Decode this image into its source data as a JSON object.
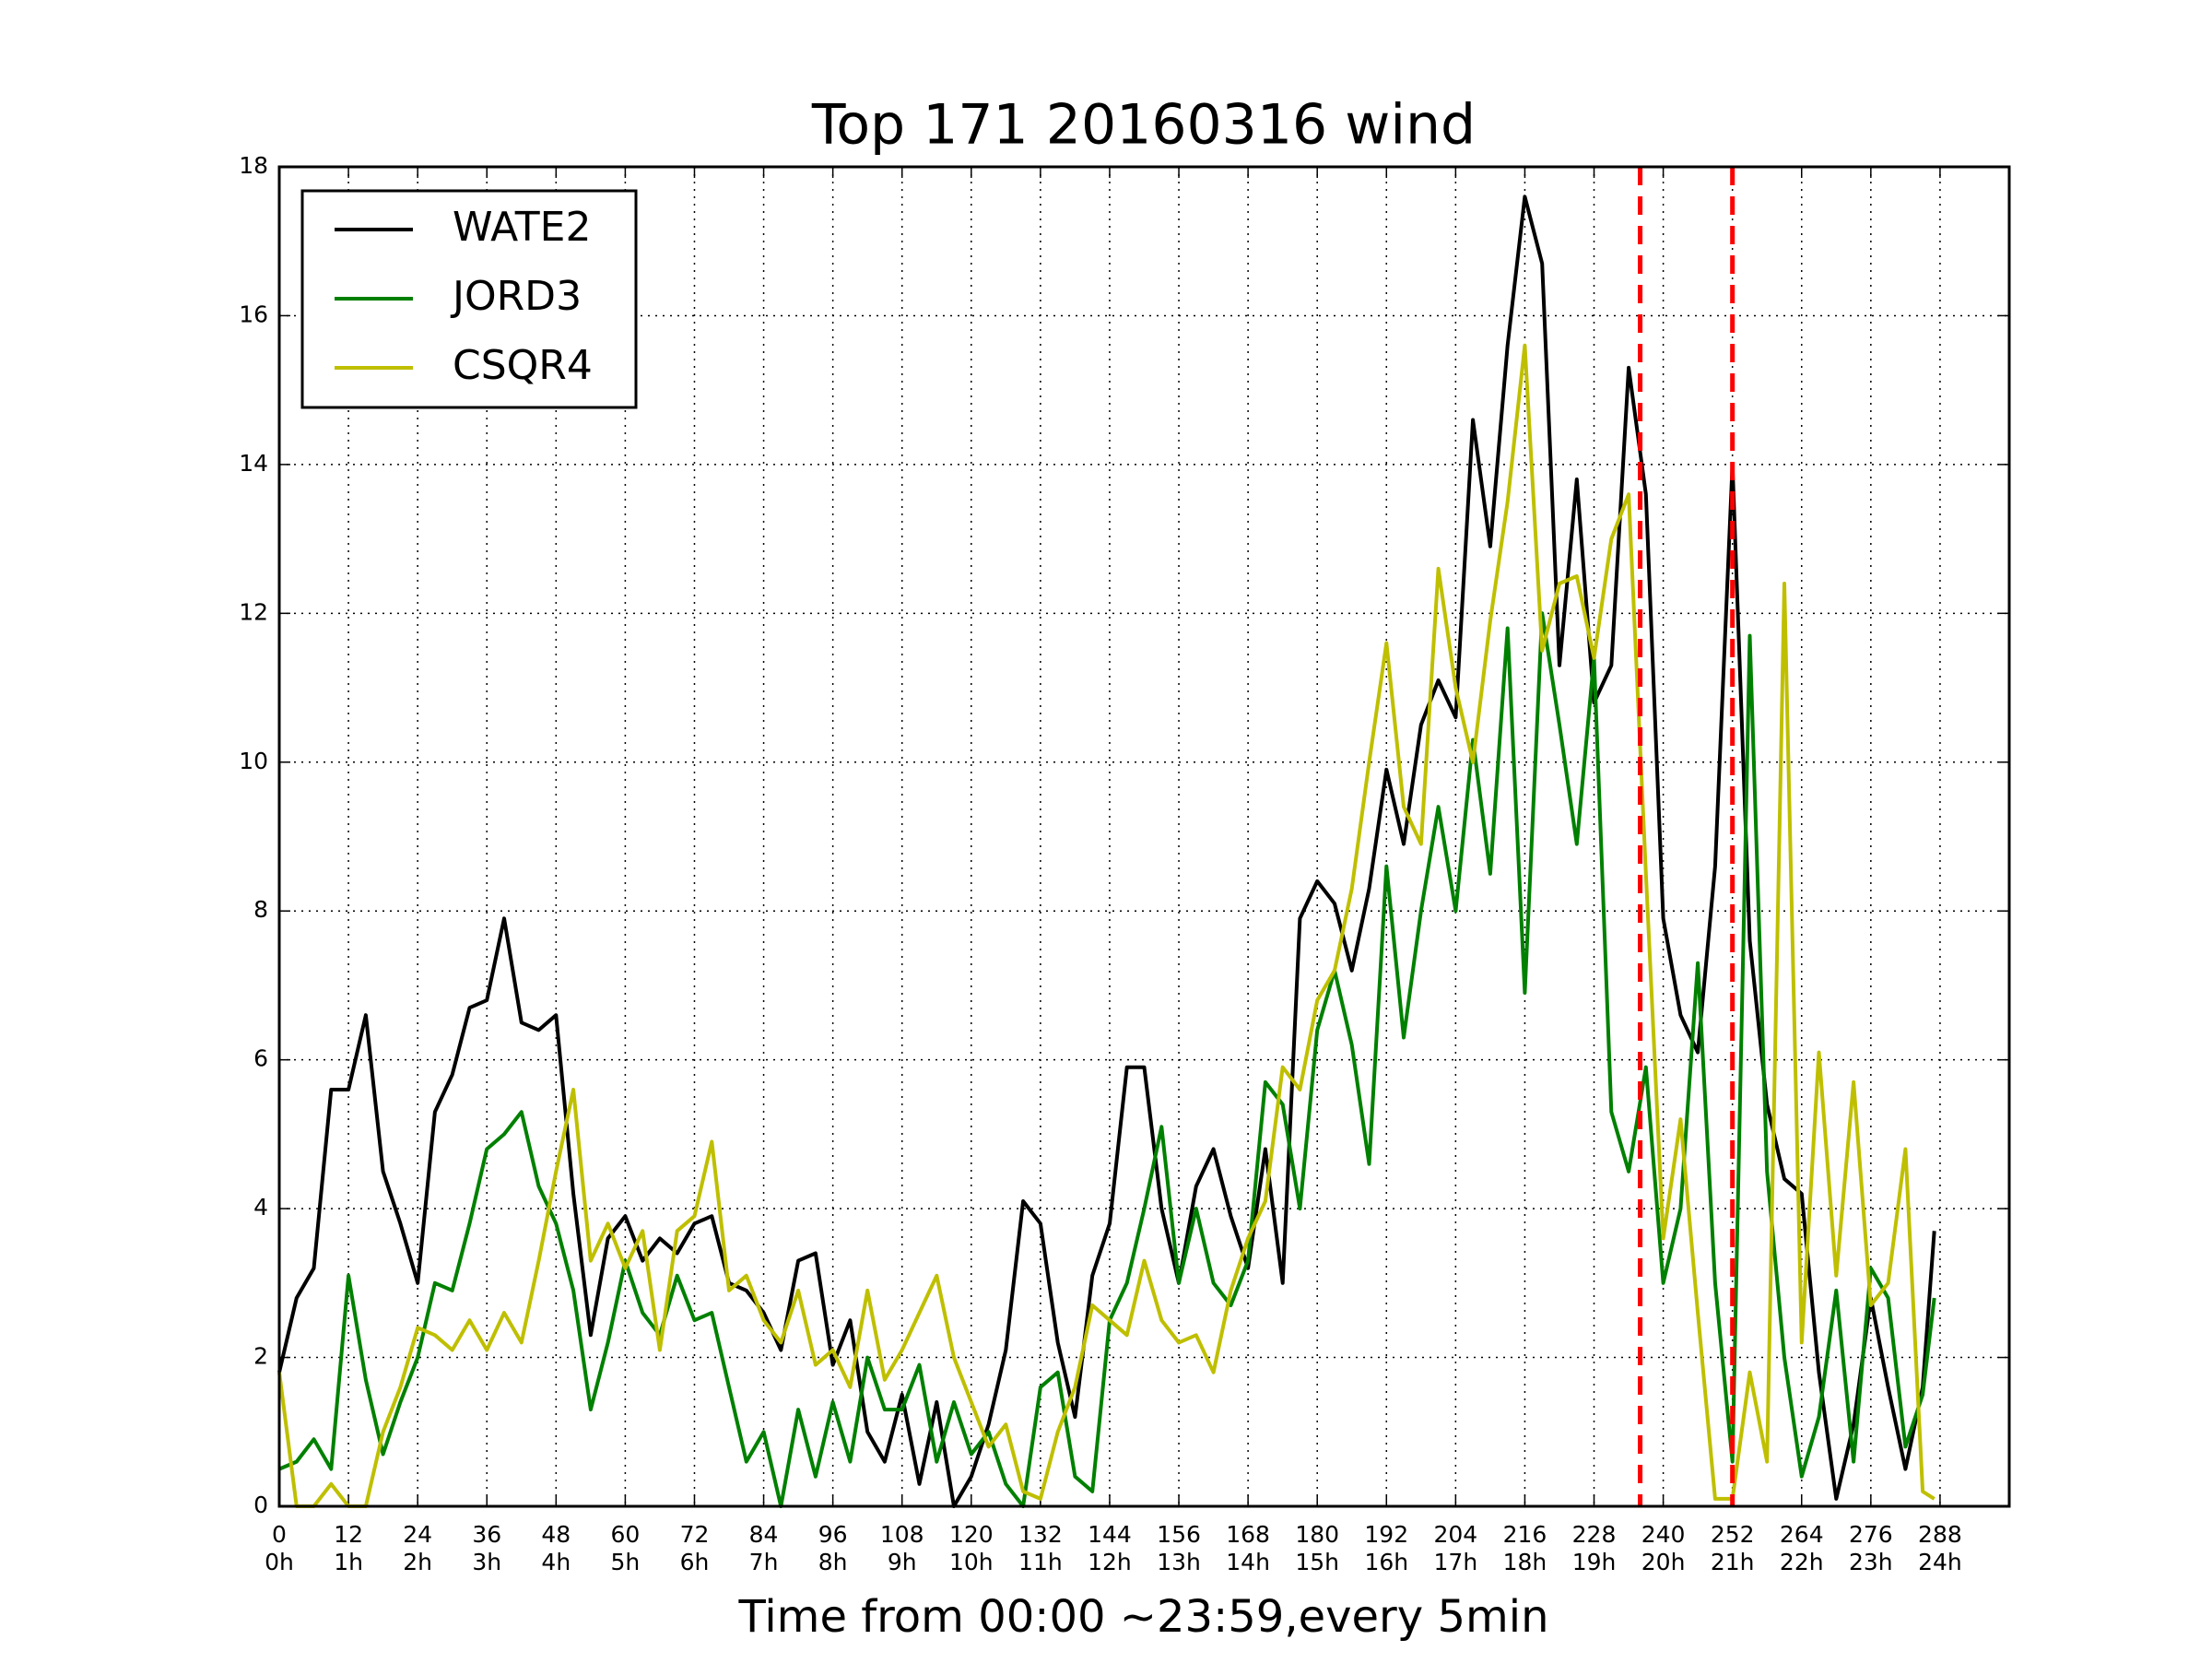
{
  "chart_data": {
    "type": "line",
    "title": "Top 171 20160316 wind",
    "xlabel": "Time from 00:00 ~23:59,every 5min",
    "xlim": [
      0,
      300
    ],
    "ylim": [
      0,
      18
    ],
    "xticks": [
      0,
      12,
      24,
      36,
      48,
      60,
      72,
      84,
      96,
      108,
      120,
      132,
      144,
      156,
      168,
      180,
      192,
      204,
      216,
      228,
      240,
      252,
      264,
      276,
      288
    ],
    "xtick_hours": [
      "0h",
      "1h",
      "2h",
      "3h",
      "4h",
      "5h",
      "6h",
      "7h",
      "8h",
      "9h",
      "10h",
      "11h",
      "12h",
      "13h",
      "14h",
      "15h",
      "16h",
      "17h",
      "18h",
      "19h",
      "20h",
      "21h",
      "22h",
      "23h",
      "24h"
    ],
    "yticks": [
      0,
      2,
      4,
      6,
      8,
      10,
      12,
      14,
      16,
      18
    ],
    "grid": true,
    "legend": "upper left",
    "vlines": [
      236,
      252
    ],
    "vline_color": "#ff0000",
    "x": [
      0,
      3,
      6,
      9,
      12,
      15,
      18,
      21,
      24,
      27,
      30,
      33,
      36,
      39,
      42,
      45,
      48,
      51,
      54,
      57,
      60,
      63,
      66,
      69,
      72,
      75,
      78,
      81,
      84,
      87,
      90,
      93,
      96,
      99,
      102,
      105,
      108,
      111,
      114,
      117,
      120,
      123,
      126,
      129,
      132,
      135,
      138,
      141,
      144,
      147,
      150,
      153,
      156,
      159,
      162,
      165,
      168,
      171,
      174,
      177,
      180,
      183,
      186,
      189,
      192,
      195,
      198,
      201,
      204,
      207,
      210,
      213,
      216,
      219,
      222,
      225,
      228,
      231,
      234,
      237,
      240,
      243,
      246,
      249,
      252,
      255,
      258,
      261,
      264,
      267,
      270,
      273,
      276,
      279,
      282,
      285,
      287
    ],
    "series": [
      {
        "name": "WATE2",
        "color": "#000000",
        "values": [
          1.8,
          2.8,
          3.2,
          5.6,
          5.6,
          6.6,
          4.5,
          3.8,
          3.0,
          5.3,
          5.8,
          6.7,
          6.8,
          7.9,
          6.5,
          6.4,
          6.6,
          4.2,
          2.3,
          3.6,
          3.9,
          3.3,
          3.6,
          3.4,
          3.8,
          3.9,
          3.0,
          2.9,
          2.6,
          2.1,
          3.3,
          3.4,
          1.9,
          2.5,
          1.0,
          0.6,
          1.5,
          0.3,
          1.4,
          0.0,
          0.4,
          1.1,
          2.1,
          4.1,
          3.8,
          2.2,
          1.2,
          3.1,
          3.8,
          5.9,
          5.9,
          4.0,
          3.0,
          4.3,
          4.8,
          3.9,
          3.2,
          4.8,
          3.0,
          7.9,
          8.4,
          8.1,
          7.2,
          8.3,
          9.9,
          8.9,
          10.5,
          11.1,
          10.6,
          14.6,
          12.9,
          15.6,
          17.6,
          16.7,
          11.3,
          13.8,
          10.8,
          11.3,
          15.3,
          13.6,
          7.9,
          6.6,
          6.1,
          8.6,
          14.0,
          7.6,
          5.4,
          4.4,
          4.2,
          1.8,
          0.1,
          1.1,
          2.8,
          1.6,
          0.5,
          1.6,
          3.7
        ]
      },
      {
        "name": "JORD3",
        "color": "#008000",
        "values": [
          0.5,
          0.6,
          0.9,
          0.5,
          3.1,
          1.7,
          0.7,
          1.4,
          2.0,
          3.0,
          2.9,
          3.8,
          4.8,
          5.0,
          5.3,
          4.3,
          3.8,
          2.9,
          1.3,
          2.2,
          3.3,
          2.6,
          2.3,
          3.1,
          2.5,
          2.6,
          1.6,
          0.6,
          1.0,
          0.0,
          1.3,
          0.4,
          1.4,
          0.6,
          2.0,
          1.3,
          1.3,
          1.9,
          0.6,
          1.4,
          0.7,
          1.0,
          0.3,
          0.0,
          1.6,
          1.8,
          0.4,
          0.2,
          2.5,
          3.0,
          4.0,
          5.1,
          3.0,
          4.0,
          3.0,
          2.7,
          3.3,
          5.7,
          5.4,
          4.0,
          6.4,
          7.2,
          6.2,
          4.6,
          8.6,
          6.3,
          8.0,
          9.4,
          8.0,
          10.3,
          8.5,
          11.8,
          6.9,
          12.0,
          10.5,
          8.9,
          11.4,
          5.3,
          4.5,
          5.9,
          3.0,
          4.0,
          7.3,
          3.0,
          0.6,
          11.7,
          4.5,
          2.0,
          0.4,
          1.2,
          2.9,
          0.6,
          3.2,
          2.8,
          0.8,
          1.5,
          2.8
        ]
      },
      {
        "name": "CSQR4",
        "color": "#bfbf00",
        "values": [
          1.8,
          0.0,
          0.0,
          0.3,
          0.0,
          0.0,
          1.0,
          1.6,
          2.4,
          2.3,
          2.1,
          2.5,
          2.1,
          2.6,
          2.2,
          3.3,
          4.5,
          5.6,
          3.3,
          3.8,
          3.2,
          3.7,
          2.1,
          3.7,
          3.9,
          4.9,
          2.9,
          3.1,
          2.5,
          2.2,
          2.9,
          1.9,
          2.1,
          1.6,
          2.9,
          1.7,
          2.1,
          2.6,
          3.1,
          2.0,
          1.4,
          0.8,
          1.1,
          0.2,
          0.1,
          1.0,
          1.6,
          2.7,
          2.5,
          2.3,
          3.3,
          2.5,
          2.2,
          2.3,
          1.8,
          2.9,
          3.6,
          4.1,
          5.9,
          5.6,
          6.8,
          7.2,
          8.3,
          10.0,
          11.6,
          9.4,
          8.9,
          12.6,
          11.0,
          10.0,
          11.9,
          13.5,
          15.6,
          11.5,
          12.4,
          12.5,
          11.4,
          13.0,
          13.6,
          8.5,
          3.6,
          5.2,
          2.6,
          0.1,
          0.1,
          1.8,
          0.6,
          12.4,
          2.2,
          6.1,
          3.1,
          5.7,
          2.7,
          3.0,
          4.8,
          0.2,
          0.1
        ]
      }
    ]
  }
}
